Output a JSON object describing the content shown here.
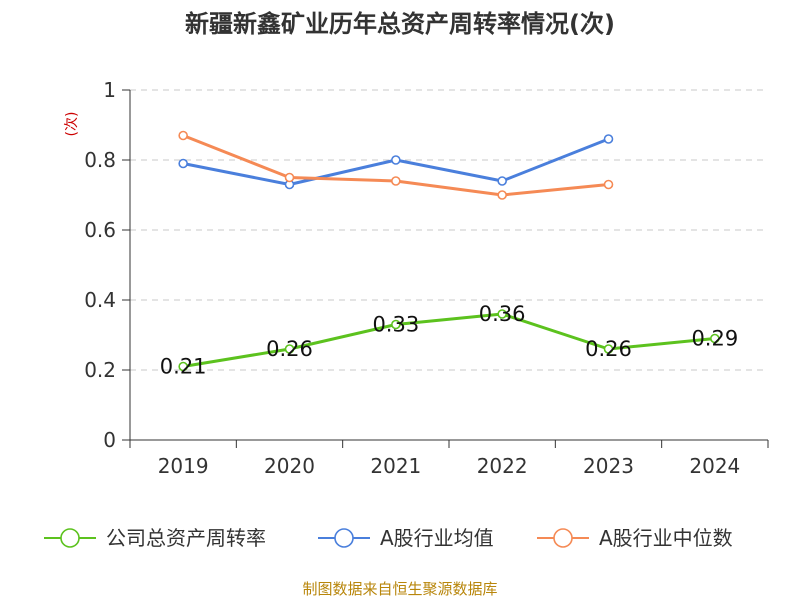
{
  "chart_data": {
    "type": "line",
    "title": "新疆新鑫矿业历年总资产周转率情况(次)",
    "ylabel": "(次)",
    "xlabel": "",
    "categories": [
      "2019",
      "2020",
      "2021",
      "2022",
      "2023",
      "2024"
    ],
    "ylim": [
      0,
      1
    ],
    "yticks": [
      "0",
      "0.2",
      "0.4",
      "0.6",
      "0.8",
      "1"
    ],
    "grid": true,
    "legend_position": "bottom",
    "series": [
      {
        "name": "公司总资产周转率",
        "color": "#5cc21e",
        "values": [
          0.21,
          0.26,
          0.33,
          0.36,
          0.26,
          0.29
        ],
        "labels": [
          "0.21",
          "0.26",
          "0.33",
          "0.36",
          "0.26",
          "0.29"
        ]
      },
      {
        "name": "A股行业均值",
        "color": "#4a7fdc",
        "values": [
          0.79,
          0.73,
          0.8,
          0.74,
          0.86,
          null
        ]
      },
      {
        "name": "A股行业中位数",
        "color": "#f58a55",
        "values": [
          0.87,
          0.75,
          0.74,
          0.7,
          0.73,
          null
        ]
      }
    ]
  },
  "footer": "制图数据来自恒生聚源数据库"
}
